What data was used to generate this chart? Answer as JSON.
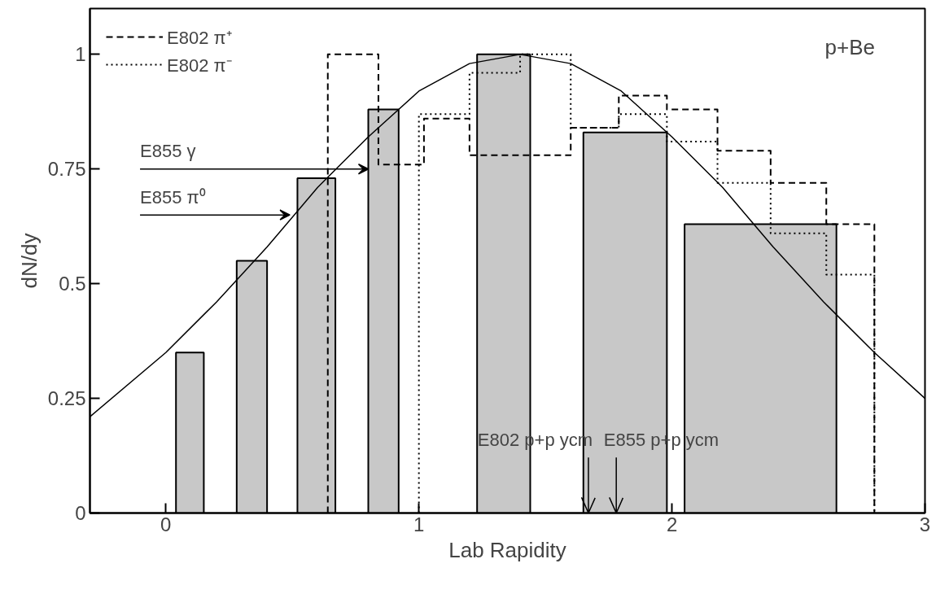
{
  "chart_data": {
    "type": "histogram",
    "xlabel": "Lab Rapidity",
    "ylabel": "dN/dy",
    "xlim": [
      -0.3,
      3
    ],
    "ylim": [
      0,
      1.1
    ],
    "xticks": [
      0,
      1,
      2,
      3
    ],
    "yticks": [
      0,
      0.25,
      0.5,
      0.75,
      1
    ],
    "grid": false,
    "legend": "top left",
    "series": [
      {
        "color": "#c8c8c8",
        "bins": [
          0.04,
          0.15,
          0.28,
          0.4,
          0.52,
          0.67,
          0.8,
          0.92,
          1.23,
          1.44,
          1.65,
          1.98,
          2.05,
          2.65
        ],
        "values": [
          0.35,
          null,
          0.55,
          null,
          0.73,
          null,
          0.88,
          null,
          1.0,
          null,
          0.83,
          null,
          0.63
        ]
      },
      {
        "type": "step",
        "name": "E802 π⁺",
        "color": "#000000",
        "line_style": "dashed",
        "x": [
          0.64,
          0.64,
          0.84,
          1.02,
          1.2,
          1.6,
          1.79,
          1.98,
          2.18,
          2.39,
          2.61,
          2.8
        ],
        "values": [
          0,
          1.0,
          0.76,
          0.86,
          0.78,
          0.84,
          0.91,
          0.88,
          0.79,
          0.72,
          0.63,
          0
        ]
      },
      {
        "type": "step",
        "name": "E802 π⁻",
        "color": "#000000",
        "line_style": "dotted",
        "x": [
          1.0,
          1.0,
          1.2,
          1.4,
          1.6,
          1.79,
          1.98,
          2.18,
          2.39,
          2.61,
          2.8
        ],
        "values": [
          0,
          0.87,
          0.96,
          1.0,
          0.84,
          0.87,
          0.81,
          0.72,
          0.61,
          0.52,
          0
        ]
      },
      {
        "type": "line",
        "color": "#000000",
        "x": [
          -0.3,
          0,
          0.2,
          0.4,
          0.6,
          0.8,
          1.0,
          1.2,
          1.4,
          1.6,
          1.8,
          2.0,
          2.2,
          2.4,
          2.6,
          2.8,
          3.0
        ],
        "values": [
          0.21,
          0.35,
          0.46,
          0.58,
          0.71,
          0.82,
          0.92,
          0.98,
          1.0,
          0.98,
          0.92,
          0.82,
          0.71,
          0.58,
          0.46,
          0.35,
          0.25
        ]
      }
    ],
    "ref_lines": [
      {
        "axis": "x",
        "value": 1.67,
        "label": "E802 p+p ycm"
      },
      {
        "axis": "x",
        "value": 1.78,
        "label": "E855 p+p ycm"
      }
    ],
    "annotations": [
      "p+Be",
      {
        "text": "E855 γ",
        "x": 0.8,
        "y": 0.75
      },
      {
        "text": "E855 π⁰",
        "x": 0.49,
        "y": 0.65
      }
    ]
  }
}
